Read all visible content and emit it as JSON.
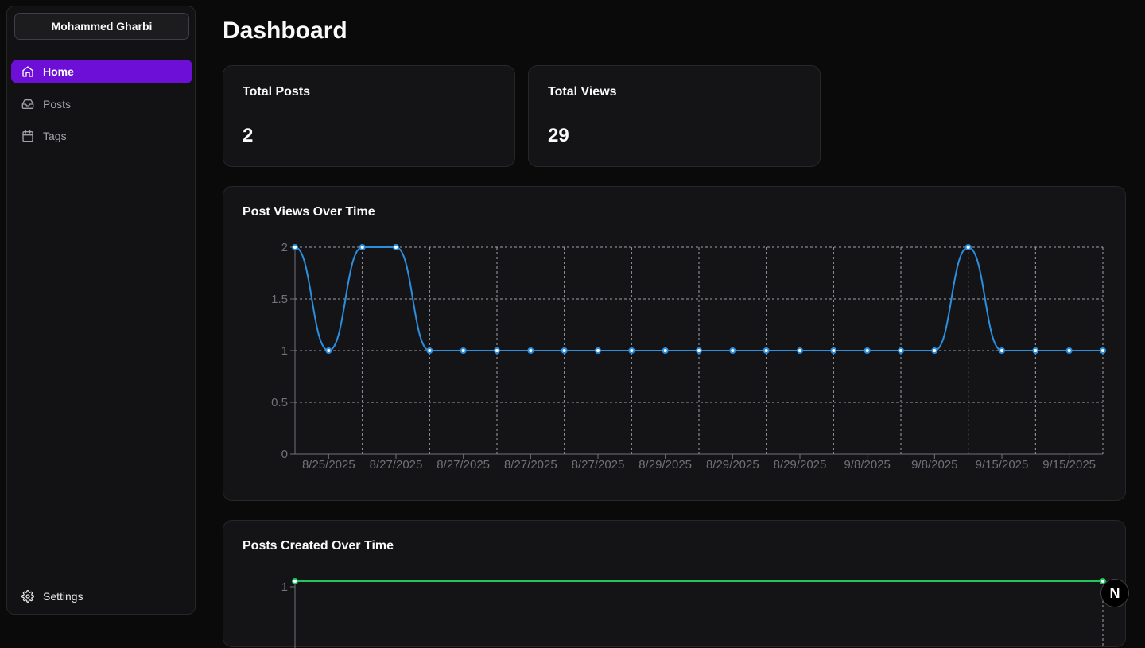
{
  "sidebar": {
    "user_name": "Mohammed Gharbi",
    "items": [
      {
        "label": "Home",
        "icon": "home-icon",
        "active": true
      },
      {
        "label": "Posts",
        "icon": "inbox-icon",
        "active": false
      },
      {
        "label": "Tags",
        "icon": "calendar-icon",
        "active": false
      }
    ],
    "settings_label": "Settings",
    "accent_color": "#6d0fd6"
  },
  "page": {
    "title": "Dashboard"
  },
  "stats": [
    {
      "label": "Total Posts",
      "value": "2"
    },
    {
      "label": "Total Views",
      "value": "29"
    }
  ],
  "next_badge": "N",
  "chart_data": [
    {
      "type": "line",
      "title": "Post Views Over Time",
      "xlabel": "",
      "ylabel": "",
      "ylim": [
        0,
        2
      ],
      "y_ticks": [
        "0",
        "0.5",
        "1",
        "1.5",
        "2"
      ],
      "x_tick_labels": [
        "8/25/2025",
        "8/27/2025",
        "8/27/2025",
        "8/27/2025",
        "8/27/2025",
        "8/29/2025",
        "8/29/2025",
        "8/29/2025",
        "9/8/2025",
        "9/8/2025",
        "9/15/2025",
        "9/15/2025"
      ],
      "values": [
        2,
        1,
        2,
        2,
        1,
        1,
        1,
        1,
        1,
        1,
        1,
        1,
        1,
        1,
        1,
        1,
        1,
        1,
        1,
        1,
        2,
        1,
        1,
        1,
        1
      ],
      "grid": true,
      "line_color": "#2b8fe0"
    },
    {
      "type": "line",
      "title": "Posts Created Over Time",
      "xlabel": "",
      "ylabel": "",
      "y_ticks": [
        "1"
      ],
      "values": [
        1,
        1
      ],
      "grid": false,
      "line_color": "#22c55e"
    }
  ]
}
